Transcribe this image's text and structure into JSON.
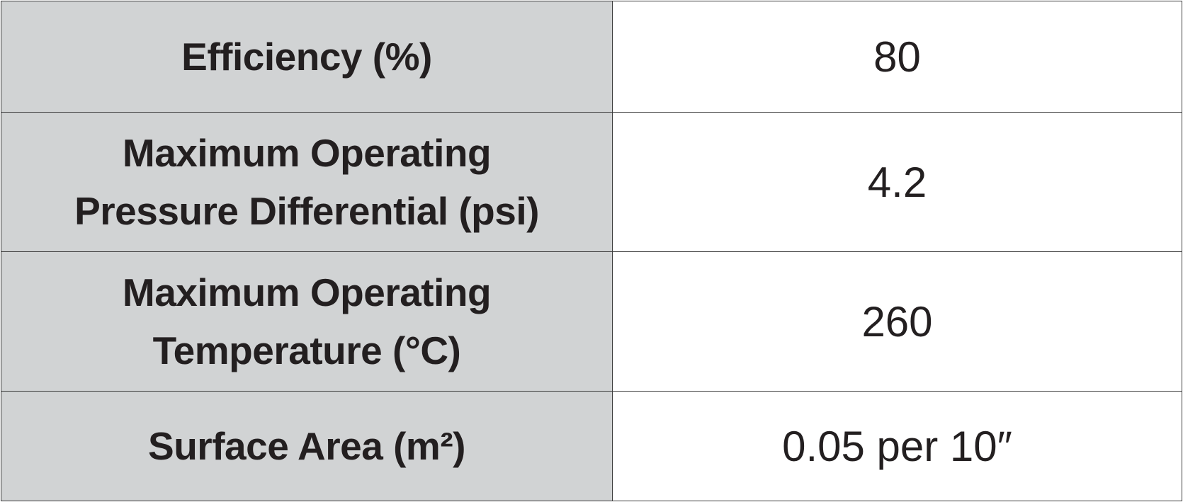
{
  "table": {
    "rows": [
      [
        [
          "Efficiency (%)"
        ],
        "80"
      ],
      [
        [
          "Maximum Operating",
          "Pressure Differential (psi)"
        ],
        "4.2"
      ],
      [
        [
          "Maximum Operating",
          "Temperature (°C)"
        ],
        "260"
      ],
      [
        [
          "Surface Area (m²)"
        ],
        "0.05 per 10″"
      ]
    ]
  }
}
